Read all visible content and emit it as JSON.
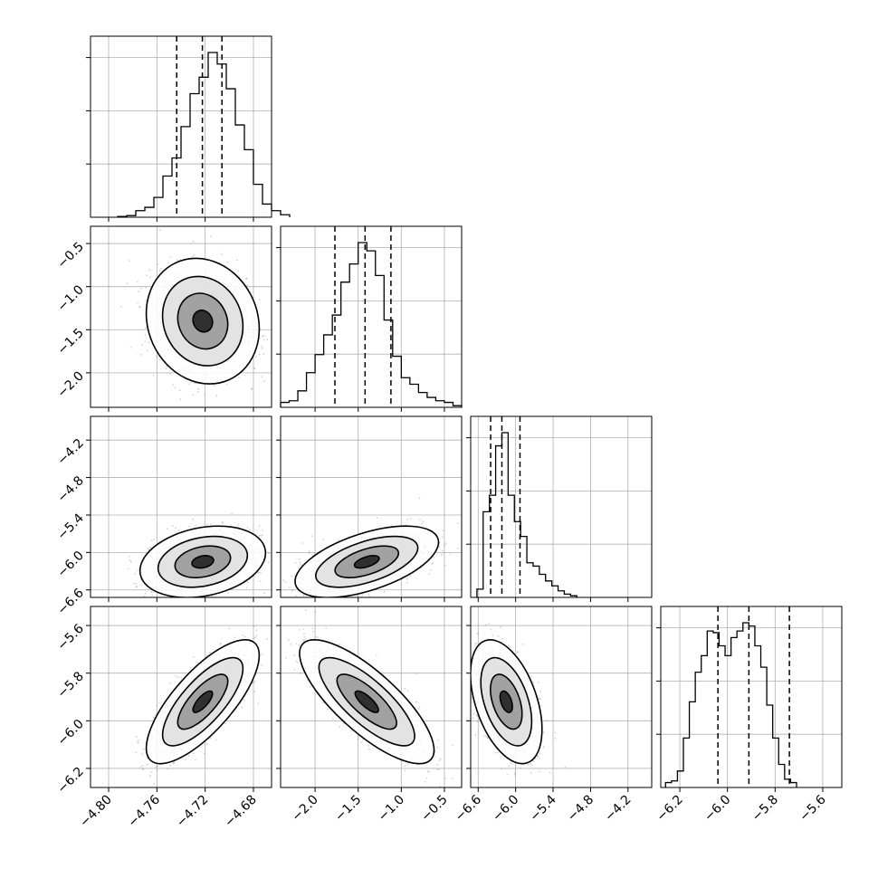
{
  "chart_data": {
    "type": "corner",
    "parameters": [
      {
        "range": [
          -4.815,
          -4.665
        ],
        "ticks": [
          -4.8,
          -4.76,
          -4.72,
          -4.68
        ],
        "tick_labels": [
          "−4.80",
          "−4.76",
          "−4.72",
          "−4.68"
        ],
        "quantiles": [
          -4.7436,
          -4.7223,
          -4.7061
        ],
        "hist": {
          "start": -4.7925,
          "step": 0.0075,
          "counts": [
            0.005,
            0.01,
            0.04,
            0.06,
            0.12,
            0.25,
            0.36,
            0.55,
            0.75,
            0.85,
            1.0,
            0.93,
            0.78,
            0.56,
            0.41,
            0.2,
            0.08,
            0.04,
            0.015
          ]
        }
      },
      {
        "range": [
          -2.4,
          -0.3
        ],
        "ticks": [
          -2.0,
          -1.5,
          -1.0,
          -0.5
        ],
        "tick_labels": [
          "−2.0",
          "−1.5",
          "−1.0",
          "−0.5"
        ],
        "quantiles": [
          -1.77,
          -1.42,
          -1.12
        ],
        "hist": {
          "start": -2.4,
          "step": 0.1,
          "counts": [
            0.03,
            0.04,
            0.1,
            0.21,
            0.32,
            0.44,
            0.56,
            0.76,
            0.87,
            1.0,
            0.95,
            0.8,
            0.53,
            0.31,
            0.18,
            0.14,
            0.09,
            0.06,
            0.04,
            0.03,
            0.01
          ]
        }
      },
      {
        "range": [
          -6.72,
          -3.82
        ],
        "ticks": [
          -6.6,
          -6.0,
          -5.4,
          -4.8,
          -4.2
        ],
        "tick_labels": [
          "−6.6",
          "−6.0",
          "−5.4",
          "−4.8",
          "−4.2"
        ],
        "quantiles": [
          -6.4,
          -6.22,
          -5.93
        ],
        "hist": {
          "start": -6.62,
          "step": 0.1,
          "counts": [
            0.05,
            0.52,
            0.62,
            0.92,
            1.0,
            0.62,
            0.46,
            0.37,
            0.21,
            0.19,
            0.14,
            0.1,
            0.07,
            0.04,
            0.02,
            0.01
          ]
        }
      },
      {
        "range": [
          -6.28,
          -5.52
        ],
        "ticks": [
          -6.2,
          -6.0,
          -5.8,
          -5.6
        ],
        "tick_labels": [
          "−6.2",
          "−6.0",
          "−5.8",
          "−5.6"
        ],
        "quantiles": [
          -6.04,
          -5.91,
          -5.74
        ],
        "hist": {
          "start": -6.26,
          "step": 0.025,
          "counts": [
            0.03,
            0.04,
            0.1,
            0.3,
            0.52,
            0.7,
            0.8,
            0.95,
            0.94,
            0.86,
            0.8,
            0.91,
            0.95,
            1.0,
            0.98,
            0.86,
            0.73,
            0.5,
            0.3,
            0.14,
            0.05,
            0.03
          ]
        }
      }
    ],
    "pairs": [
      {
        "row": 1,
        "col": 0,
        "mean": [
          -4.722,
          -1.4
        ],
        "sd": [
          0.018,
          0.28
        ],
        "corr": -0.12
      },
      {
        "row": 2,
        "col": 0,
        "mean": [
          -4.722,
          -6.15
        ],
        "sd": [
          0.02,
          0.22
        ],
        "corr": 0.25
      },
      {
        "row": 2,
        "col": 1,
        "mean": [
          -1.4,
          -6.15
        ],
        "sd": [
          0.32,
          0.22
        ],
        "corr": 0.55
      },
      {
        "row": 3,
        "col": 0,
        "mean": [
          -4.722,
          -5.92
        ],
        "sd": [
          0.018,
          0.1
        ],
        "corr": 0.75
      },
      {
        "row": 3,
        "col": 1,
        "mean": [
          -1.4,
          -5.92
        ],
        "sd": [
          0.3,
          0.1
        ],
        "corr": -0.78
      },
      {
        "row": 3,
        "col": 2,
        "mean": [
          -6.15,
          -5.92
        ],
        "sd": [
          0.22,
          0.1
        ],
        "corr": -0.45
      }
    ],
    "grid": true,
    "colors": {
      "lines": "#000000",
      "points": "#7f7f7f",
      "grid": "#b0b0b0"
    }
  }
}
